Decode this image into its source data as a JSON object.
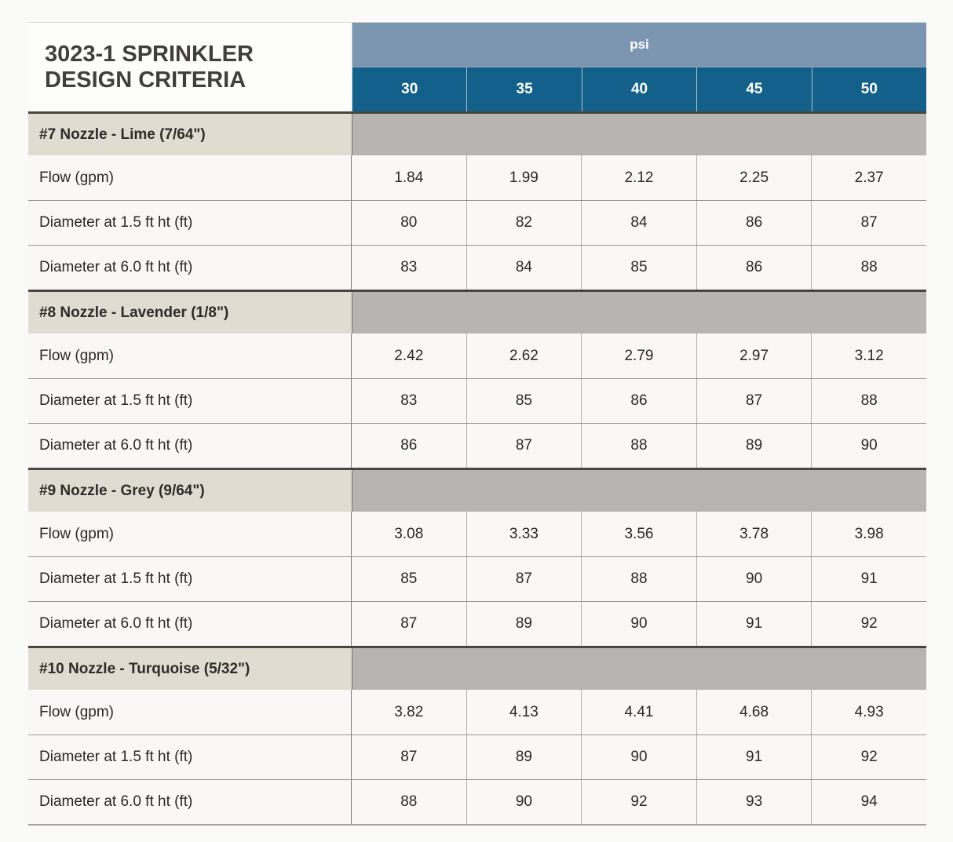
{
  "table": {
    "title": "3023-1 SPRINKLER DESIGN CRITERIA",
    "unit_header": "psi",
    "pressures": [
      "30",
      "35",
      "40",
      "45",
      "50"
    ],
    "row_labels": [
      "Flow (gpm)",
      "Diameter at 1.5 ft ht (ft)",
      "Diameter at 6.0 ft ht (ft)"
    ],
    "sections": [
      {
        "name": "#7 Nozzle - Lime (7/64\")",
        "rows": [
          [
            "1.84",
            "1.99",
            "2.12",
            "2.25",
            "2.37"
          ],
          [
            "80",
            "82",
            "84",
            "86",
            "87"
          ],
          [
            "83",
            "84",
            "85",
            "86",
            "88"
          ]
        ]
      },
      {
        "name": "#8 Nozzle - Lavender (1/8\")",
        "rows": [
          [
            "2.42",
            "2.62",
            "2.79",
            "2.97",
            "3.12"
          ],
          [
            "83",
            "85",
            "86",
            "87",
            "88"
          ],
          [
            "86",
            "87",
            "88",
            "89",
            "90"
          ]
        ]
      },
      {
        "name": "#9 Nozzle - Grey (9/64\")",
        "rows": [
          [
            "3.08",
            "3.33",
            "3.56",
            "3.78",
            "3.98"
          ],
          [
            "85",
            "87",
            "88",
            "90",
            "91"
          ],
          [
            "87",
            "89",
            "90",
            "91",
            "92"
          ]
        ]
      },
      {
        "name": "#10 Nozzle - Turquoise (5/32\")",
        "rows": [
          [
            "3.82",
            "4.13",
            "4.41",
            "4.68",
            "4.93"
          ],
          [
            "87",
            "89",
            "90",
            "91",
            "92"
          ],
          [
            "88",
            "90",
            "92",
            "93",
            "94"
          ]
        ]
      }
    ]
  },
  "colors": {
    "psi_band": "#7c96b2",
    "pressure_band": "#13608a",
    "section_label_bg": "#e0dcd1",
    "section_fill_bg": "#b7b5b1",
    "data_row_bg": "#f9f8f6",
    "title_text": "#413f3d",
    "body_text": "#2b2927",
    "page_bg": "#fafaf8"
  }
}
